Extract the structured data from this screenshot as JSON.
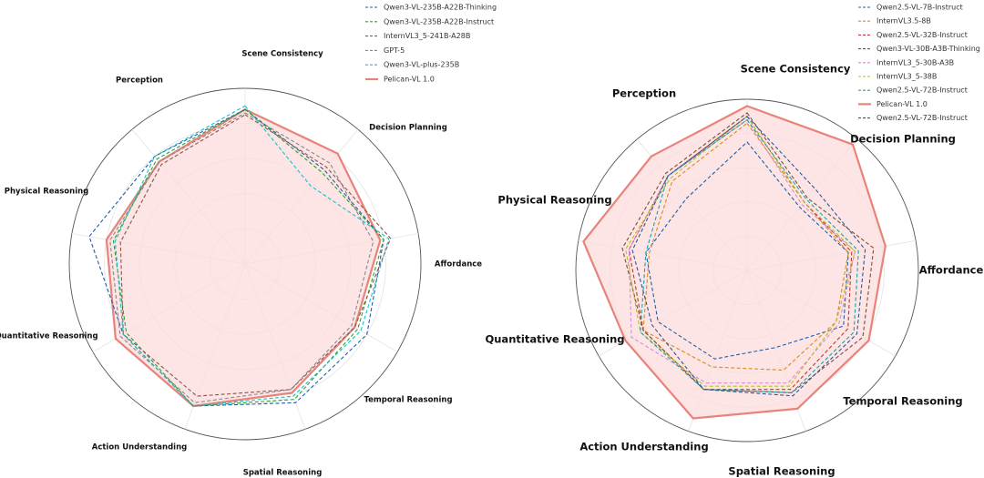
{
  "chart_data": [
    {
      "type": "radar",
      "title": "",
      "axes": [
        "Scene Consistency",
        "Decision Planning",
        "Affordance",
        "Temporal Reasoning",
        "Spatial Reasoning",
        "Action Understanding",
        "Quantitative Reasoning",
        "Physical Reasoning",
        "Perception"
      ],
      "range": [
        0,
        100
      ],
      "rings": [
        20,
        40,
        60,
        80,
        100
      ],
      "grid": true,
      "legend_position": "top-right",
      "series": [
        {
          "name": "Qwen3-VL-235B-A22B-Thinking",
          "color": "#1f5fa8",
          "style": "dashed",
          "values": [
            88,
            70,
            80,
            80,
            84,
            86,
            80,
            90,
            80
          ]
        },
        {
          "name": "Qwen3-VL-235B-A22B-Instruct",
          "color": "#2ca02c",
          "style": "dashed",
          "values": [
            88,
            68,
            80,
            74,
            82,
            86,
            78,
            76,
            78
          ]
        },
        {
          "name": "InternVL3_5-241B-A28B",
          "color": "#8c564b",
          "style": "dashed",
          "values": [
            85,
            72,
            84,
            72,
            76,
            80,
            80,
            72,
            74
          ]
        },
        {
          "name": "GPT-5",
          "color": "#888888",
          "style": "dashed",
          "values": [
            86,
            75,
            74,
            70,
            76,
            84,
            82,
            78,
            76
          ]
        },
        {
          "name": "Qwen3-VL-plus-235B",
          "color": "#17becf",
          "style": "dashed",
          "values": [
            90,
            58,
            83,
            76,
            80,
            86,
            80,
            75,
            80
          ]
        },
        {
          "name": "Pelican-VL 1.0",
          "color": "#e8837a",
          "style": "solid",
          "fill": "#fcdcdc",
          "values": [
            88,
            82,
            78,
            72,
            78,
            86,
            85,
            80,
            76
          ]
        }
      ]
    },
    {
      "type": "radar",
      "title": "",
      "axes": [
        "Scene Consistency",
        "Decision Planning",
        "Affordance",
        "Temporal Reasoning",
        "Spatial Reasoning",
        "Action Understanding",
        "Quantitative Reasoning",
        "Physical Reasoning",
        "Perception"
      ],
      "range": [
        0,
        100
      ],
      "rings": [
        20,
        40,
        60,
        80,
        100
      ],
      "grid": true,
      "legend_position": "top-right",
      "series": [
        {
          "name": "Qwen2.5-VL-7B-Instruct",
          "color": "#1f5fa8",
          "style": "dashed",
          "values": [
            75,
            48,
            60,
            65,
            48,
            55,
            60,
            60,
            55
          ]
        },
        {
          "name": "InternVL3.5-8B",
          "color": "#d98a1f",
          "style": "dashed",
          "values": [
            86,
            52,
            60,
            60,
            62,
            60,
            70,
            58,
            68
          ]
        },
        {
          "name": "Qwen2.5-VL-32B-Instruct",
          "color": "#c0392b",
          "style": "dashed",
          "values": [
            90,
            52,
            62,
            68,
            74,
            74,
            70,
            70,
            72
          ]
        },
        {
          "name": "Qwen3-VL-30B-A3B-Thinking",
          "color": "#7b4f3a",
          "style": "dashed",
          "values": [
            92,
            55,
            75,
            78,
            76,
            74,
            70,
            74,
            74
          ]
        },
        {
          "name": "InternVL3_5-30B-A3B",
          "color": "#d48fd0",
          "style": "dashed",
          "values": [
            88,
            50,
            64,
            62,
            70,
            70,
            78,
            70,
            72
          ]
        },
        {
          "name": "InternVL3_5-38B",
          "color": "#bcbd22",
          "style": "dashed",
          "values": [
            90,
            52,
            64,
            60,
            72,
            72,
            72,
            72,
            70
          ]
        },
        {
          "name": "Qwen2.5-VL-72B-Instruct",
          "color": "#17a5a5",
          "style": "dashed",
          "values": [
            88,
            54,
            66,
            72,
            76,
            74,
            72,
            60,
            72
          ]
        },
        {
          "name": "Pelican-VL 1.0",
          "color": "#e8837a",
          "style": "solid",
          "fill": "#fcdcdc",
          "values": [
            96,
            96,
            82,
            82,
            86,
            92,
            82,
            97,
            87
          ]
        },
        {
          "name": "Qwen2.5-VL-72B-Instruct",
          "color": "#2f5597",
          "style": "dashed",
          "values": [
            90,
            62,
            70,
            74,
            78,
            74,
            64,
            68,
            72
          ]
        }
      ]
    }
  ]
}
